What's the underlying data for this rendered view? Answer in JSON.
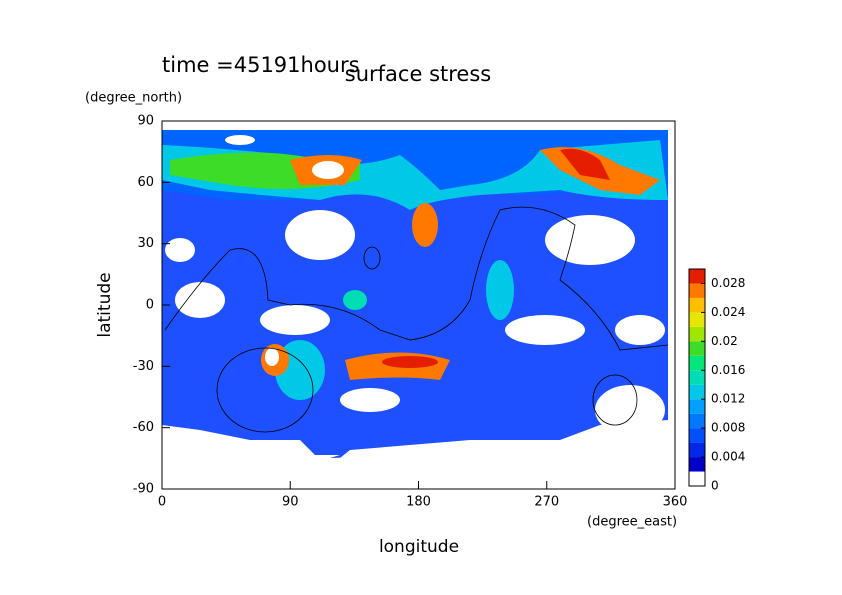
{
  "chart_data": {
    "type": "contour",
    "title": "surface stress",
    "subtitle": "time =45191hours",
    "x_label": "longitude",
    "x_unit": "(degree_east)",
    "y_label": "latitude",
    "y_unit": "(degree_north)",
    "xlim": [
      0,
      360
    ],
    "xticks": [
      0,
      90,
      180,
      270,
      360
    ],
    "ylim": [
      -90,
      90
    ],
    "yticks": [
      -90,
      -60,
      -30,
      0,
      30,
      60,
      90
    ],
    "colorbar": {
      "lim": [
        0,
        0.03
      ],
      "ticks": [
        0,
        0.004,
        0.008,
        0.012,
        0.016,
        0.02,
        0.024,
        0.028
      ],
      "colors": [
        "#ffffff",
        "#0000c8",
        "#0028e6",
        "#0050ff",
        "#0078ff",
        "#00a0ff",
        "#00c8e6",
        "#00dcb4",
        "#00e678",
        "#3cdc28",
        "#a0e600",
        "#e6e600",
        "#ffbe00",
        "#ff7800",
        "#e61e00"
      ]
    }
  }
}
